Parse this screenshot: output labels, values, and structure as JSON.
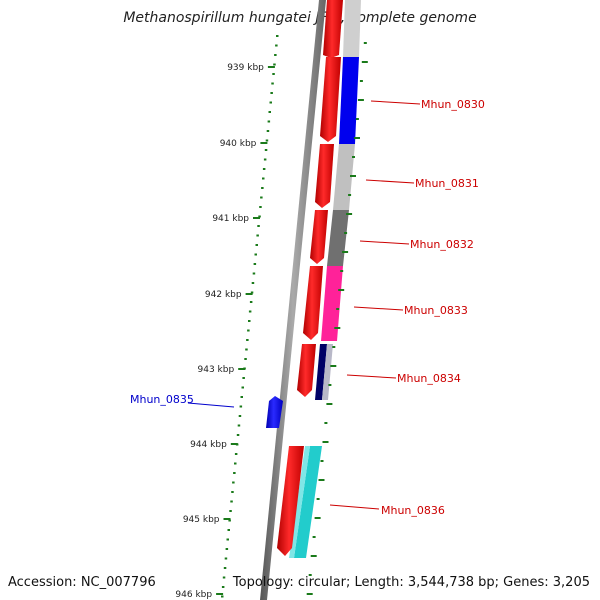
{
  "title": "Methanospirillum hungatei JF-1, complete genome",
  "footer": {
    "accession": "Accession: NC_007796",
    "topology": "Topology: circular; Length: 3,544,738 bp; Genes: 3,205"
  },
  "scale": {
    "ticks": [
      "939 kbp",
      "940 kbp",
      "941 kbp",
      "942 kbp",
      "943 kbp",
      "944 kbp",
      "945 kbp",
      "946 kbp"
    ]
  },
  "genes": [
    {
      "name": "Mhun_0830",
      "label_color": "#cc0000",
      "cog_color": "#0000ee"
    },
    {
      "name": "Mhun_0831",
      "label_color": "#cc0000",
      "cog_color": "#c0c0c0"
    },
    {
      "name": "Mhun_0832",
      "label_color": "#cc0000",
      "cog_color": "#707070"
    },
    {
      "name": "Mhun_0833",
      "label_color": "#cc0000",
      "cog_color": "#ff2299"
    },
    {
      "name": "Mhun_0834",
      "label_color": "#cc0000",
      "cog_color": "#000066"
    },
    {
      "name": "Mhun_0835",
      "label_color": "#0000cc",
      "cog_color": "#0000ee"
    },
    {
      "name": "Mhun_0836",
      "label_color": "#cc0000",
      "cog_color": "#22cccc"
    }
  ],
  "colors": {
    "forward_gene": "#ee0000",
    "reverse_gene": "#0000ee",
    "backbone": "#888888",
    "ticks": "#1a7a1a"
  }
}
